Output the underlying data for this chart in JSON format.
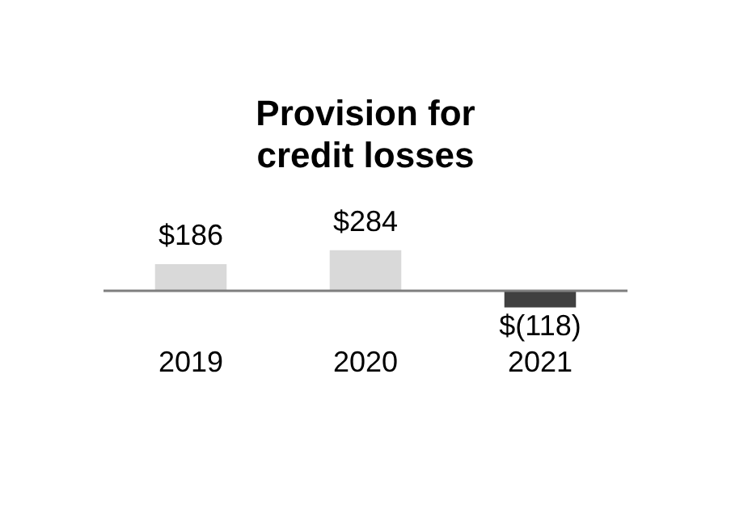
{
  "chart_data": {
    "type": "bar",
    "title": "Provision for\ncredit losses",
    "categories": [
      "2019",
      "2020",
      "2021"
    ],
    "values": [
      186,
      284,
      -118
    ],
    "colors": [
      "#d9d9d9",
      "#d9d9d9",
      "#404040"
    ],
    "value_labels": [
      "$186",
      "$284",
      "$(118)"
    ],
    "grid": false,
    "legend": false
  }
}
